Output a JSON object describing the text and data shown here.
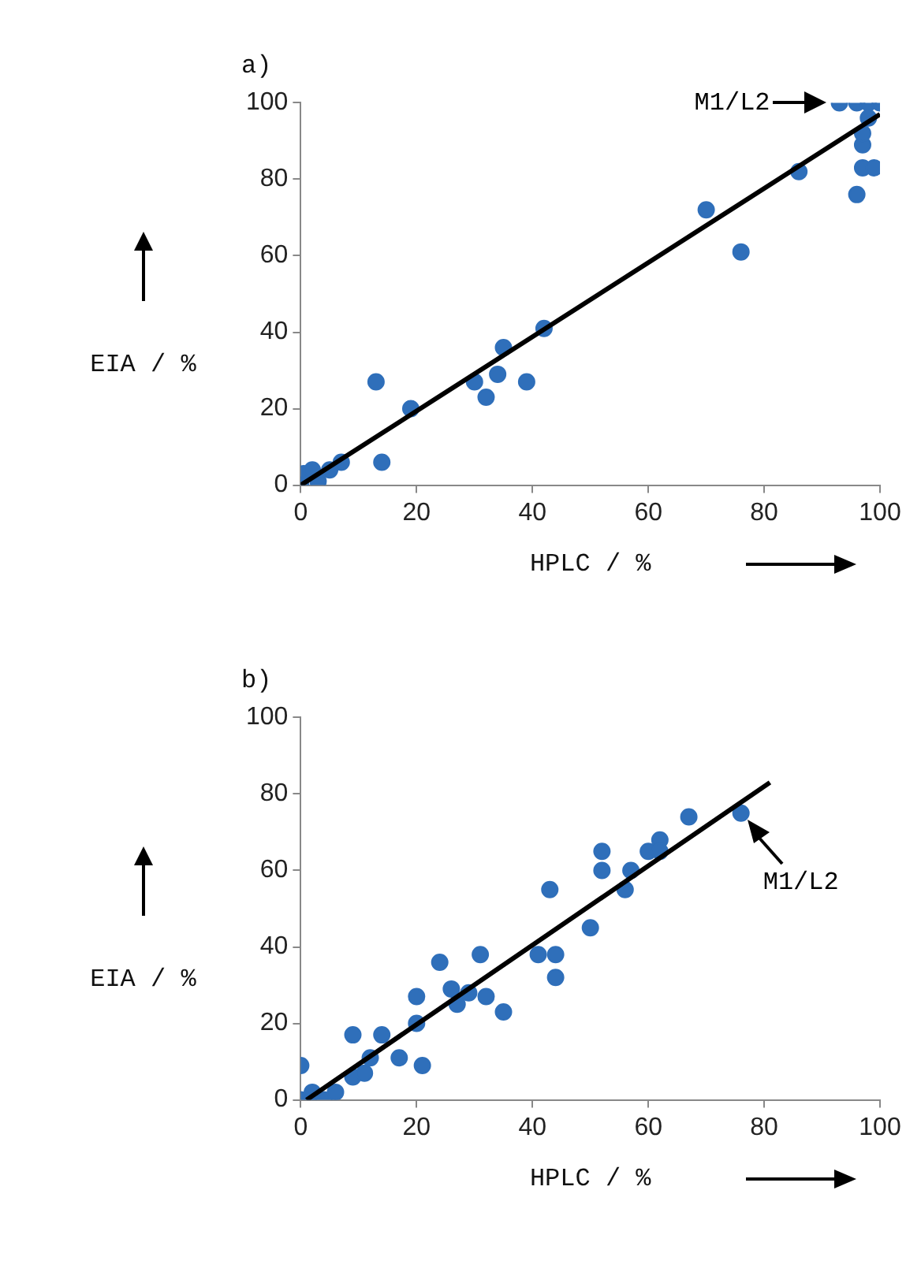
{
  "chart_data": [
    {
      "type": "scatter",
      "title": "a)",
      "xlabel": "HPLC / %",
      "ylabel": "EIA / %",
      "xlim": [
        0,
        100
      ],
      "ylim": [
        0,
        100
      ],
      "xticks": [
        0,
        20,
        40,
        60,
        80,
        100
      ],
      "yticks": [
        0,
        20,
        40,
        60,
        80,
        100
      ],
      "grid": false,
      "legend": false,
      "marker": "circle",
      "annotations": [
        {
          "text": "M1/L2",
          "x": 93,
          "y": 100
        }
      ],
      "series": [
        {
          "color": "#2f6fba",
          "x": [
            0,
            0.5,
            2,
            3,
            5,
            7,
            13,
            14,
            19,
            30,
            32,
            34,
            35,
            39,
            42,
            70,
            76,
            86,
            96,
            97,
            99,
            97,
            97,
            93,
            96,
            98,
            100,
            98
          ],
          "values": [
            0,
            3,
            4,
            1,
            4,
            6,
            27,
            6,
            20,
            27,
            23,
            29,
            36,
            27,
            41,
            72,
            61,
            82,
            76,
            83,
            83,
            89,
            92,
            100,
            100,
            100,
            100,
            96
          ]
        },
        {
          "type": "line",
          "color": "#000000",
          "marker": "none",
          "x": [
            0,
            100
          ],
          "values": [
            0,
            97
          ]
        }
      ]
    },
    {
      "type": "scatter",
      "title": "b)",
      "xlabel": "HPLC / %",
      "ylabel": "EIA / %",
      "xlim": [
        0,
        100
      ],
      "ylim": [
        0,
        100
      ],
      "xticks": [
        0,
        20,
        40,
        60,
        80,
        100
      ],
      "yticks": [
        0,
        20,
        40,
        60,
        80,
        100
      ],
      "grid": false,
      "legend": false,
      "marker": "circle",
      "annotations": [
        {
          "text": "M1/L2",
          "x": 76,
          "y": 75
        }
      ],
      "series": [
        {
          "color": "#2f6fba",
          "x": [
            0,
            0,
            2,
            4,
            6,
            9,
            9,
            11,
            12,
            14,
            17,
            20,
            20,
            21,
            24,
            26,
            27,
            29,
            31,
            32,
            35,
            41,
            43,
            44,
            44,
            50,
            52,
            52,
            56,
            57,
            60,
            62,
            62,
            67,
            76
          ],
          "values": [
            9,
            0,
            2,
            0,
            2,
            17,
            6,
            7,
            11,
            17,
            11,
            27,
            20,
            9,
            36,
            29,
            25,
            28,
            38,
            27,
            23,
            38,
            55,
            38,
            32,
            45,
            65,
            60,
            55,
            60,
            65,
            68,
            65,
            74,
            75
          ]
        },
        {
          "type": "line",
          "color": "#000000",
          "marker": "none",
          "x": [
            1,
            81
          ],
          "values": [
            0,
            83
          ]
        }
      ]
    }
  ]
}
